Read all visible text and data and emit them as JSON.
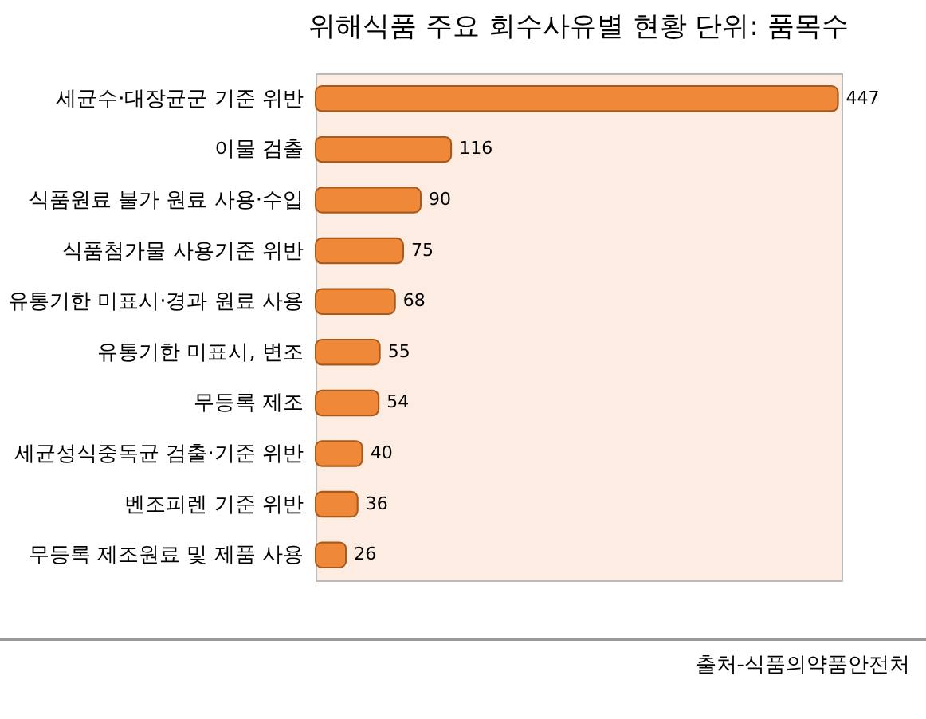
{
  "chart_data": {
    "type": "bar",
    "orientation": "horizontal",
    "title": "위해식품 주요 회수사유별 현황  단위: 품목수",
    "categories": [
      "세균수·대장균군 기준 위반",
      "이물 검출",
      "식품원료 불가 원료 사용·수입",
      "식품첨가물 사용기준 위반",
      "유통기한 미표시·경과 원료 사용",
      "유통기한 미표시, 변조",
      "무등록 제조",
      "세균성식중독균 검출·기준 위반",
      "벤조피렌 기준 위반",
      "무등록 제조원료 및 제품 사용"
    ],
    "values": [
      447,
      116,
      90,
      75,
      68,
      55,
      54,
      40,
      36,
      26
    ],
    "color": "#f0883a",
    "data_labels": true,
    "annotations": [
      "출처-식품의약품안전처"
    ]
  }
}
